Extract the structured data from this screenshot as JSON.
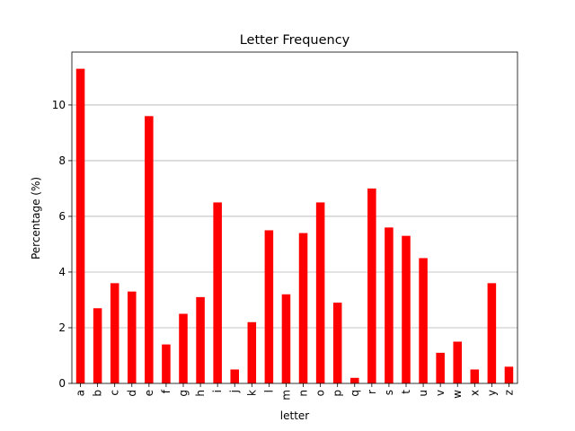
{
  "chart_data": {
    "type": "bar",
    "title": "Letter Frequency",
    "xlabel": "letter",
    "ylabel": "Percentage (%)",
    "categories": [
      "a",
      "b",
      "c",
      "d",
      "e",
      "f",
      "g",
      "h",
      "i",
      "j",
      "k",
      "l",
      "m",
      "n",
      "o",
      "p",
      "q",
      "r",
      "s",
      "t",
      "u",
      "v",
      "w",
      "x",
      "y",
      "z"
    ],
    "values": [
      11.3,
      2.7,
      3.6,
      3.3,
      9.6,
      1.4,
      2.5,
      3.1,
      6.5,
      0.5,
      2.2,
      5.5,
      3.2,
      5.4,
      6.5,
      2.9,
      0.2,
      7.0,
      5.6,
      5.3,
      4.5,
      1.1,
      1.5,
      0.5,
      3.6,
      0.6
    ],
    "ylim": [
      0,
      11.9
    ],
    "yticks": [
      0,
      2,
      4,
      6,
      8,
      10
    ],
    "grid": "y-axis horizontal lines",
    "bar_color": "#ff0000",
    "grid_color": "#b0b0b0"
  }
}
